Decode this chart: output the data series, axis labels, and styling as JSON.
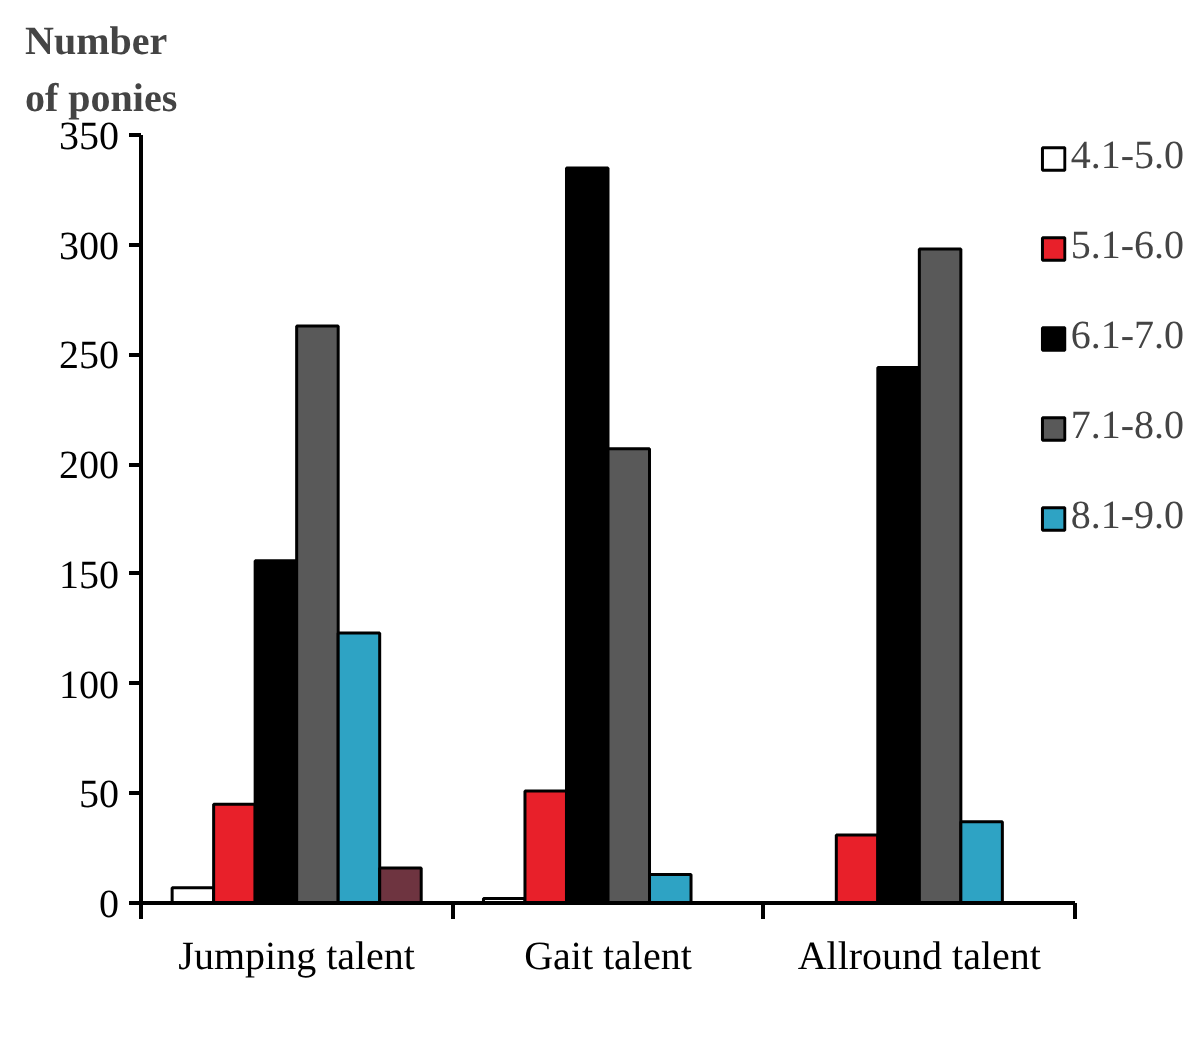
{
  "chart_data": {
    "type": "bar",
    "ylabel": "Number of ponies",
    "categories": [
      "Jumping talent",
      "Gait talent",
      "Allround talent"
    ],
    "series": [
      {
        "name": "4.1-5.0",
        "color": "#ffffff",
        "values": [
          7,
          2,
          null
        ]
      },
      {
        "name": "5.1-6.0",
        "color": "#e8202a",
        "values": [
          45,
          51,
          31
        ]
      },
      {
        "name": "6.1-7.0",
        "color": "#000000",
        "values": [
          156,
          335,
          244
        ]
      },
      {
        "name": "7.1-8.0",
        "color": "#595959",
        "values": [
          263,
          207,
          298
        ]
      },
      {
        "name": "8.1-9.0",
        "color": "#2ea3c4",
        "values": [
          123,
          13,
          37
        ]
      },
      {
        "color": "#6e3440",
        "values": [
          16,
          null,
          null
        ]
      }
    ],
    "ylim": [
      0,
      350
    ],
    "yticks": [
      0,
      50,
      100,
      150,
      200,
      250,
      300,
      350
    ],
    "grid": false,
    "legend": "right"
  }
}
